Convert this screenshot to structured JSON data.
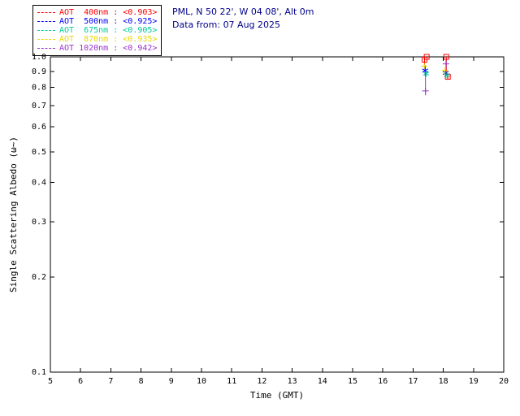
{
  "header": {
    "site_line": "PML, N 50 22', W 04 08', Alt 0m",
    "date_line": "Data from: 07 Aug 2025",
    "text_color": "#00008b"
  },
  "legend": {
    "entries": [
      {
        "label": "AOT  400nm : <0.903>",
        "color": "#ff0000"
      },
      {
        "label": "AOT  500nm : <0.925>",
        "color": "#0000ff"
      },
      {
        "label": "AOT  675nm : <0.905>",
        "color": "#00cc99"
      },
      {
        "label": "AOT  870nm : <0.935>",
        "color": "#e8d800"
      },
      {
        "label": "AOT 1020nm : <0.942>",
        "color": "#9933cc"
      }
    ]
  },
  "chart_data": {
    "type": "scatter",
    "title": "",
    "xlabel": "Time (GMT)",
    "ylabel": "Single Scattering Albedo (ω~)",
    "xlim": [
      5,
      20
    ],
    "ylim": [
      0.1,
      1.0
    ],
    "yscale": "log",
    "xticks": [
      5,
      6,
      7,
      8,
      9,
      10,
      11,
      12,
      13,
      14,
      15,
      16,
      17,
      18,
      19,
      20
    ],
    "yticks": [
      1.0,
      0.9,
      0.8,
      0.7,
      0.6,
      0.5,
      0.4,
      0.3,
      0.2,
      0.1
    ],
    "grid": false,
    "legend_position": "top-left",
    "frame_color": "#000000",
    "series": [
      {
        "name": "AOT 400nm",
        "mean_label": "<0.903>",
        "color": "#ff0000",
        "marker": "square",
        "points": [
          {
            "x": 17.38,
            "y": 0.98,
            "lo": 0.945,
            "hi": 1.0
          },
          {
            "x": 17.45,
            "y": 1.0
          },
          {
            "x": 18.1,
            "y": 1.0,
            "lo": 0.88,
            "hi": 1.0
          },
          {
            "x": 18.15,
            "y": 0.865,
            "lo": 0.845,
            "hi": 0.885
          }
        ]
      },
      {
        "name": "AOT 500nm",
        "mean_label": "<0.925>",
        "color": "#0000ff",
        "marker": "asterisk",
        "points": [
          {
            "x": 17.4,
            "y": 0.905,
            "lo": 0.87,
            "hi": 0.94
          },
          {
            "x": 18.08,
            "y": 0.89,
            "lo": 0.87,
            "hi": 0.91
          }
        ]
      },
      {
        "name": "AOT 675nm",
        "mean_label": "<0.905>",
        "color": "#00cc99",
        "marker": "asterisk",
        "points": [
          {
            "x": 17.43,
            "y": 0.885
          },
          {
            "x": 18.12,
            "y": 0.875
          }
        ]
      },
      {
        "name": "AOT 870nm",
        "mean_label": "<0.935>",
        "color": "#e8d800",
        "marker": "plus",
        "points": [
          {
            "x": 17.37,
            "y": 0.935
          },
          {
            "x": 18.06,
            "y": 0.905
          }
        ]
      },
      {
        "name": "AOT 1020nm",
        "mean_label": "<0.942>",
        "color": "#9933cc",
        "marker": "plus",
        "points": [
          {
            "x": 17.41,
            "y": 0.78,
            "lo": 0.755,
            "hi": 0.9
          },
          {
            "x": 18.09,
            "y": 0.95,
            "lo": 0.92,
            "hi": 0.975
          }
        ]
      }
    ]
  }
}
